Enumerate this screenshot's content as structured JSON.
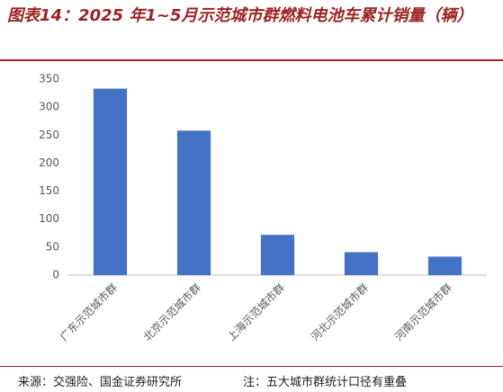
{
  "chart_data": {
    "type": "bar",
    "title": "图表14：2025 年1~5月示范城市群燃料电池车累计销量（辆）",
    "categories": [
      "广东示范城市群",
      "北京示范城市群",
      "上海示范城市群",
      "河北示范城市群",
      "河南示范城市群"
    ],
    "values": [
      333,
      258,
      72,
      41,
      33
    ],
    "color": "#4472c4",
    "ylim": [
      0,
      350
    ],
    "yticks": [
      0,
      50,
      100,
      150,
      200,
      250,
      300,
      350
    ],
    "grid": false,
    "source": "来源：交强险、国金证券研究所",
    "note": "注：五大城市群统计口径有重叠"
  }
}
